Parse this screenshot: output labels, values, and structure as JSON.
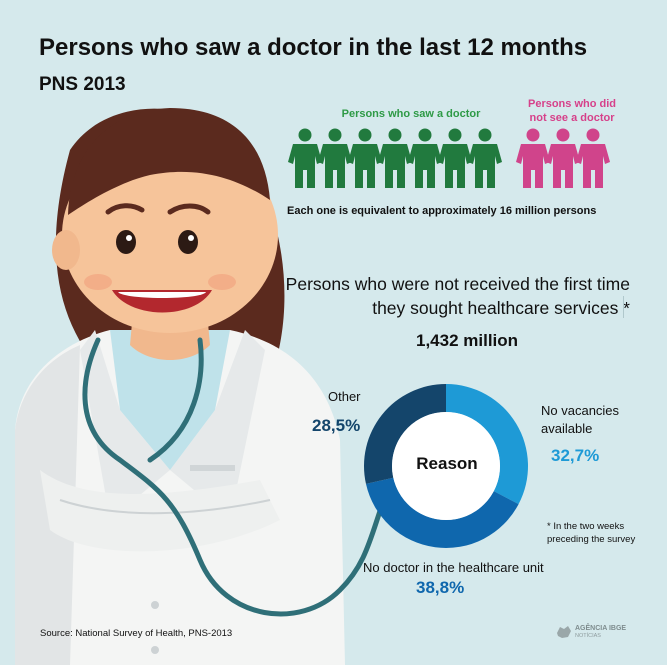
{
  "header": {
    "title": "Persons who saw a doctor in the last 12 months",
    "subtitle": "PNS 2013"
  },
  "pictogram": {
    "saw_label": "Persons who saw a doctor",
    "not_saw_label": "Persons who did not see a doctor",
    "saw_count": 7,
    "not_saw_count": 3,
    "saw_color": "#217a3e",
    "not_saw_color": "#d0448b",
    "equivalence_note": "Each one is equivalent to approximately 16 million persons"
  },
  "section": {
    "headline": "Persons who were not received the first time they sought healthcare services *",
    "total": "1,432 million",
    "center_label": "Reason"
  },
  "chart_data": {
    "type": "pie",
    "donut": true,
    "center_label": "Reason",
    "slices": [
      {
        "label": "No vacancies available",
        "value": 32.7,
        "value_label": "32,7%",
        "color": "#1e9ad6"
      },
      {
        "label": "No doctor in the healthcare unit",
        "value": 38.8,
        "value_label": "38,8%",
        "color": "#0f67ad"
      },
      {
        "label": "Other",
        "value": 28.5,
        "value_label": "28,5%",
        "color": "#14456b"
      }
    ]
  },
  "footnote": "* In the two weeks preceding the survey",
  "source": "Source: National Survey of Health, PNS-2013",
  "logo": {
    "brand": "AGÊNCIA IBGE",
    "sub": "NOTÍCIAS"
  }
}
